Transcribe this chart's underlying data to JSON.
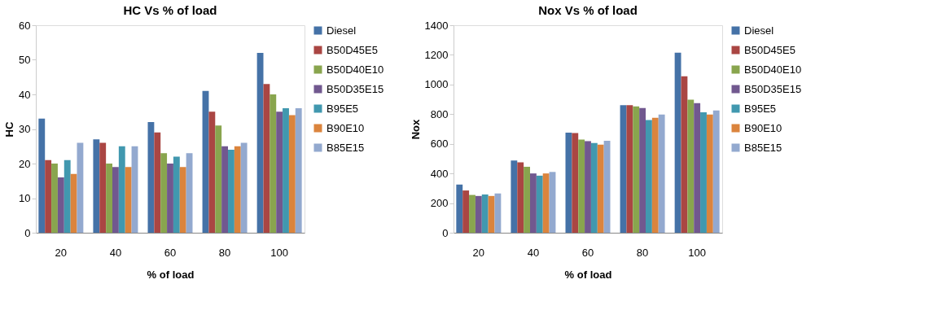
{
  "chart_data": [
    {
      "type": "bar",
      "title": "HC Vs % of load",
      "xlabel": "% of load",
      "ylabel": "HC",
      "categories": [
        "20",
        "40",
        "60",
        "80",
        "100"
      ],
      "ylim": [
        0,
        60
      ],
      "yticks": [
        0,
        10,
        20,
        30,
        40,
        50,
        60
      ],
      "grid": false,
      "legend": "right",
      "series": [
        {
          "name": "Diesel",
          "color": "#4572a7",
          "values": [
            33,
            27,
            32,
            41,
            52
          ]
        },
        {
          "name": "B50D45E5",
          "color": "#aa4643",
          "values": [
            21,
            26,
            29,
            35,
            43
          ]
        },
        {
          "name": "B50D40E10",
          "color": "#89a54e",
          "values": [
            20,
            20,
            23,
            31,
            40
          ]
        },
        {
          "name": "B50D35E15",
          "color": "#71588f",
          "values": [
            16,
            19,
            20,
            25,
            35
          ]
        },
        {
          "name": "B95E5",
          "color": "#4198af",
          "values": [
            21,
            25,
            22,
            24,
            36
          ]
        },
        {
          "name": "B90E10",
          "color": "#db843d",
          "values": [
            17,
            19,
            19,
            25,
            34
          ]
        },
        {
          "name": "B85E15",
          "color": "#93a9cf",
          "values": [
            26,
            25,
            23,
            26,
            36
          ]
        }
      ]
    },
    {
      "type": "bar",
      "title": "Nox Vs % of load",
      "xlabel": "% of load",
      "ylabel": "Nox",
      "categories": [
        "20",
        "40",
        "60",
        "80",
        "100"
      ],
      "ylim": [
        0,
        1400
      ],
      "yticks": [
        0,
        200,
        400,
        600,
        800,
        1000,
        1200,
        1400
      ],
      "grid": false,
      "legend": "right",
      "series": [
        {
          "name": "Diesel",
          "color": "#4572a7",
          "values": [
            325,
            487,
            675,
            860,
            1215
          ]
        },
        {
          "name": "B50D45E5",
          "color": "#aa4643",
          "values": [
            285,
            475,
            672,
            860,
            1055
          ]
        },
        {
          "name": "B50D40E10",
          "color": "#89a54e",
          "values": [
            255,
            445,
            628,
            852,
            898
          ]
        },
        {
          "name": "B50D35E15",
          "color": "#71588f",
          "values": [
            248,
            400,
            618,
            842,
            875
          ]
        },
        {
          "name": "B95E5",
          "color": "#4198af",
          "values": [
            258,
            385,
            605,
            760,
            812
          ]
        },
        {
          "name": "B90E10",
          "color": "#db843d",
          "values": [
            248,
            400,
            595,
            775,
            798
          ]
        },
        {
          "name": "B85E15",
          "color": "#93a9cf",
          "values": [
            265,
            410,
            620,
            798,
            825
          ]
        }
      ]
    }
  ]
}
